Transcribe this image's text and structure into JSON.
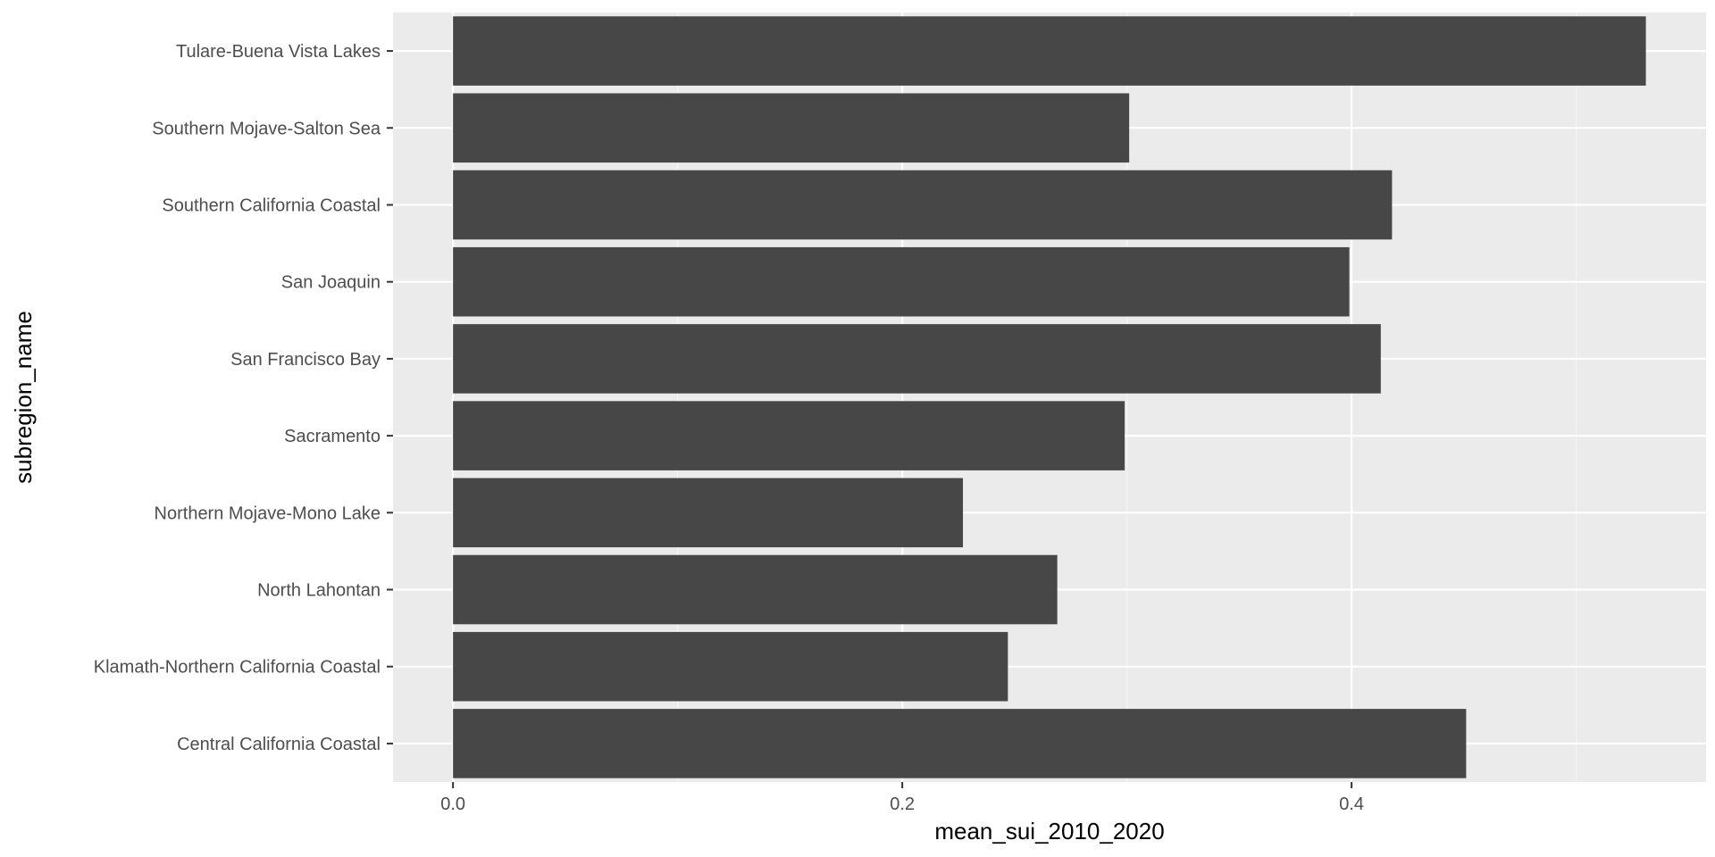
{
  "chart_data": {
    "type": "bar",
    "orientation": "horizontal",
    "categories": [
      "Tulare-Buena Vista Lakes",
      "Southern Mojave-Salton Sea",
      "Southern California Coastal",
      "San Joaquin",
      "San Francisco Bay",
      "Sacramento",
      "Northern Mojave-Mono Lake",
      "North Lahontan",
      "Klamath-Northern California Coastal",
      "Central California Coastal"
    ],
    "values": [
      0.531,
      0.301,
      0.418,
      0.399,
      0.413,
      0.299,
      0.227,
      0.269,
      0.247,
      0.451
    ],
    "xlabel": "mean_sui_2010_2020",
    "ylabel": "subregion_name",
    "xlim": [
      -0.0267,
      0.5578
    ],
    "x_ticks": [
      0.0,
      0.2,
      0.4
    ],
    "x_tick_labels": [
      "0.0",
      "0.2",
      "0.4"
    ],
    "grid": true,
    "colors": {
      "panel_background": "#ebebeb",
      "grid_major": "#ffffff",
      "grid_minor": "#f5f5f5",
      "bar_fill": "#474747"
    }
  }
}
